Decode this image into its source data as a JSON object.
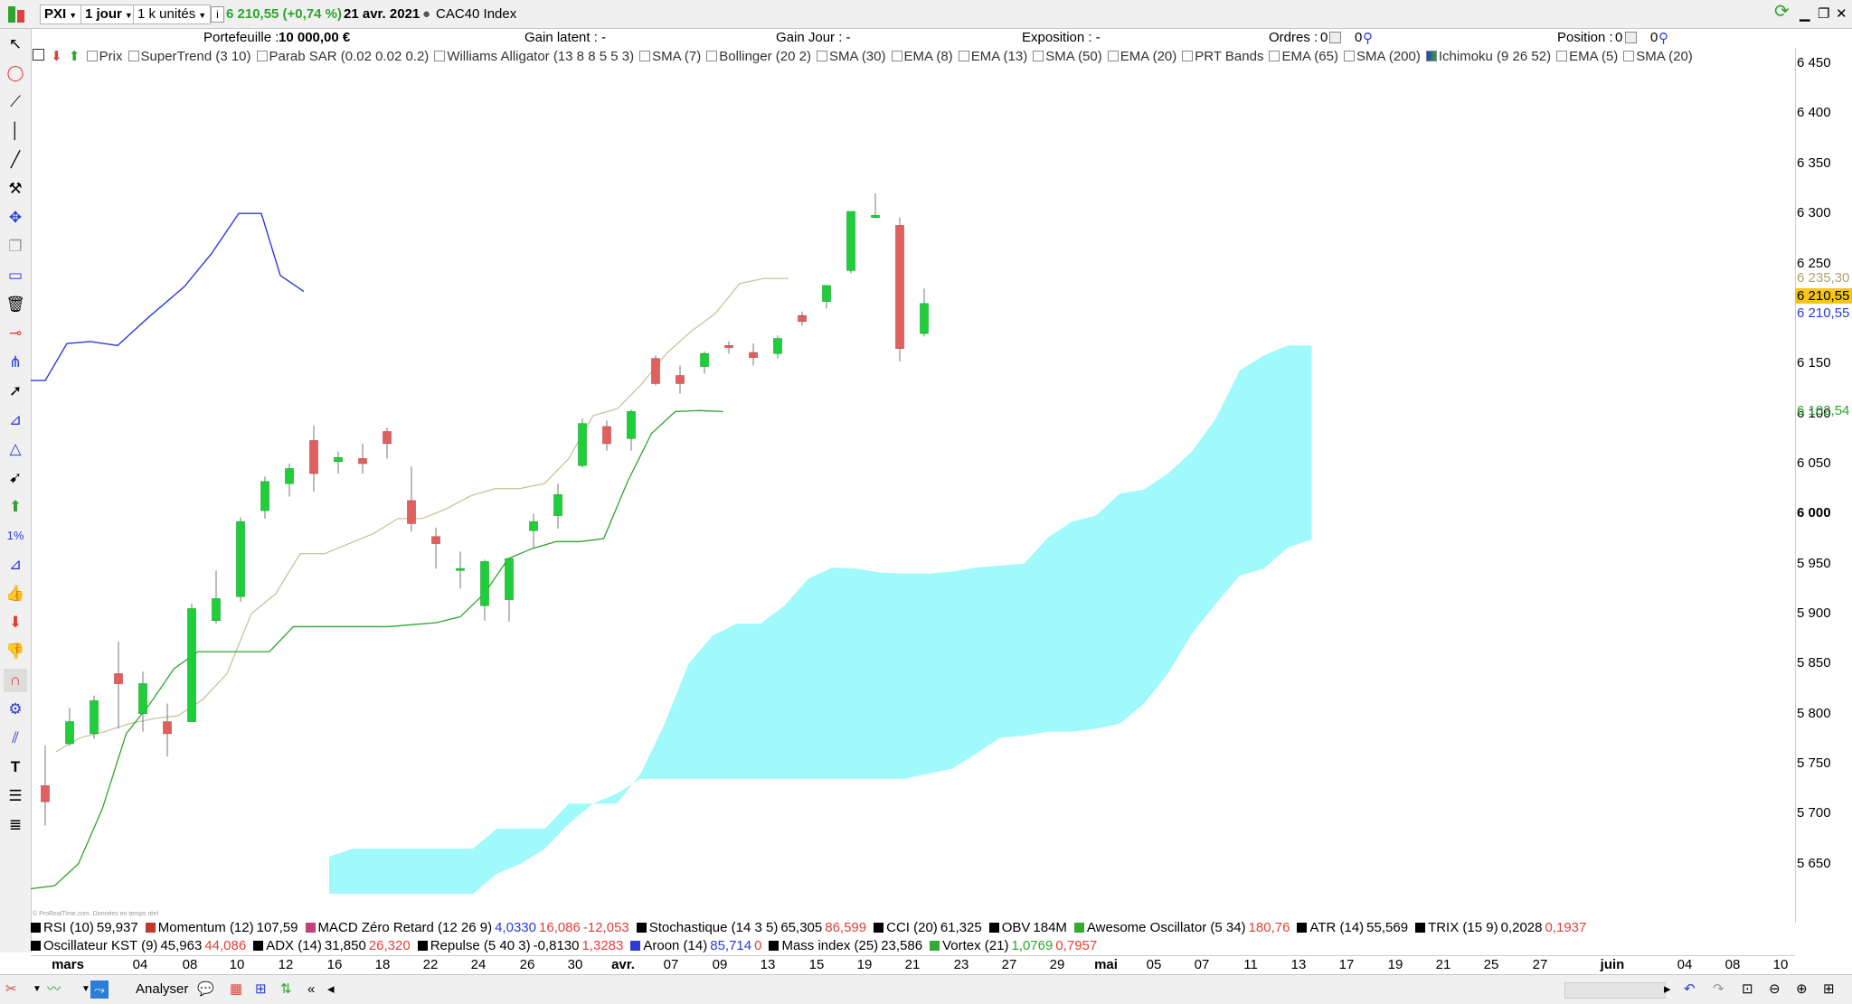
{
  "toolbar": {
    "ticker": "PXI",
    "period": "1 jour",
    "units": "1 k unités",
    "info": "i",
    "price_change": "6 210,55 (+0,74 %)",
    "date": "21 avr. 2021",
    "index_name": "CAC40 Index"
  },
  "infobar": {
    "portefeuille_label": "Portefeuille :",
    "portefeuille_value": "10 000,00 €",
    "gain_latent": "Gain latent : -",
    "gain_jour": "Gain Jour : -",
    "exposition": "Exposition : -",
    "ordres_label": "Ordres :",
    "ordres_value": "0",
    "ordres_value2": "0",
    "position_label": "Position :",
    "position_value": "0",
    "position_value2": "0"
  },
  "indicators_top": [
    "Prix",
    "SuperTrend (3 10)",
    "Parab SAR (0.02 0.02 0.2)",
    "Williams Alligator (13 8 8 5 5 3)",
    "SMA (7)",
    "Bollinger (20 2)",
    "SMA (30)",
    "EMA (8)",
    "EMA (13)",
    "SMA (50)",
    "EMA (20)",
    "PRT Bands",
    "EMA (65)",
    "SMA (200)",
    "Ichimoku (9 26 52)",
    "EMA (5)",
    "SMA (20)"
  ],
  "y_ticks": [
    "6 450",
    "6 400",
    "6 350",
    "6 300",
    "6 250",
    "6 150",
    "6 100",
    "6 050",
    "6 000",
    "5 950",
    "5 900",
    "5 850",
    "5 800",
    "5 750",
    "5 700",
    "5 650"
  ],
  "price_tags": {
    "kijun": "6 235,30",
    "last": "6 210,55",
    "tenkan": "6 210,55",
    "chikou": "6 102,54"
  },
  "bottom_indicators_row1": [
    {
      "name": "RSI (10)",
      "v1": "59,937",
      "v2": "",
      "color": "#000000"
    },
    {
      "name": "Momentum (12)",
      "v1": "107,59",
      "v2": "",
      "color": "#c0392b"
    },
    {
      "name": "MACD Zéro Retard (12 26 9)",
      "v1": "4,0330",
      "v2": "16,086",
      "v3": "-12,053",
      "color": "#c04080"
    },
    {
      "name": "Stochastique (14 3 5)",
      "v1": "65,305",
      "v2": "86,599",
      "color": "#000000"
    },
    {
      "name": "CCI (20)",
      "v1": "61,325",
      "v2": "",
      "color": "#000000"
    },
    {
      "name": "OBV",
      "v1": "184M",
      "v2": "",
      "color": "#000000"
    },
    {
      "name": "Awesome Oscillator (5 34)",
      "v1": "180,76",
      "v2": "",
      "color": "#3a3"
    },
    {
      "name": "ATR (14)",
      "v1": "55,569",
      "v2": "",
      "color": "#000000"
    },
    {
      "name": "TRIX (15 9)",
      "v1": "0,2028",
      "v2": "0,1937",
      "color": "#000000"
    }
  ],
  "bottom_indicators_row2": [
    {
      "name": "Oscillateur KST (9)",
      "v1": "45,963",
      "v2": "44,086",
      "color": "#000000"
    },
    {
      "name": "ADX (14)",
      "v1": "31,850",
      "v2": "26,320",
      "color": "#000000"
    },
    {
      "name": "Repulse (5 40 3)",
      "v1": "-0,8130",
      "v2": "1,3283",
      "color": "#000000"
    },
    {
      "name": "Aroon (14)",
      "v1": "85,714",
      "v2": "0",
      "color": "#2a3bd6"
    },
    {
      "name": "Mass index (25)",
      "v1": "23,586",
      "v2": "",
      "color": "#000000"
    },
    {
      "name": "Vortex (21)",
      "v1": "1,0769",
      "v2": "0,7957",
      "color": "#3a3"
    }
  ],
  "x_labels": [
    "mars",
    "04",
    "08",
    "10",
    "12",
    "16",
    "18",
    "22",
    "24",
    "26",
    "30",
    "avr.",
    "07",
    "09",
    "13",
    "15",
    "19",
    "21",
    "23",
    "27",
    "29",
    "mai",
    "05",
    "07",
    "11",
    "13",
    "17",
    "19",
    "21",
    "25",
    "27",
    "juin",
    "04",
    "08",
    "10"
  ],
  "statusbar": {
    "analyser": "Analyser"
  },
  "watermark": "© ProRealTime.com. Données en temps réel",
  "chart_data": {
    "type": "candlestick",
    "title": "PXI — CAC40 Index, 1 jour",
    "ylim": [
      5620,
      6470
    ],
    "y_ticks_values": [
      6450,
      6400,
      6350,
      6300,
      6250,
      6150,
      6100,
      6050,
      6000,
      5950,
      5900,
      5850,
      5800,
      5750,
      5700,
      5650
    ],
    "candles": [
      {
        "o": 5728,
        "h": 5768,
        "l": 5688,
        "c": 5712
      },
      {
        "o": 5770,
        "h": 5806,
        "l": 5768,
        "c": 5792
      },
      {
        "o": 5780,
        "h": 5818,
        "l": 5775,
        "c": 5813
      },
      {
        "o": 5840,
        "h": 5872,
        "l": 5785,
        "c": 5830
      },
      {
        "o": 5800,
        "h": 5842,
        "l": 5782,
        "c": 5830
      },
      {
        "o": 5792,
        "h": 5810,
        "l": 5757,
        "c": 5780
      },
      {
        "o": 5792,
        "h": 5910,
        "l": 5792,
        "c": 5905
      },
      {
        "o": 5893,
        "h": 5943,
        "l": 5890,
        "c": 5915
      },
      {
        "o": 5917,
        "h": 5996,
        "l": 5912,
        "c": 5992
      },
      {
        "o": 6003,
        "h": 6037,
        "l": 5995,
        "c": 6032
      },
      {
        "o": 6030,
        "h": 6050,
        "l": 6017,
        "c": 6045
      },
      {
        "o": 6073,
        "h": 6088,
        "l": 6022,
        "c": 6040
      },
      {
        "o": 6052,
        "h": 6062,
        "l": 6040,
        "c": 6056
      },
      {
        "o": 6055,
        "h": 6070,
        "l": 6040,
        "c": 6050
      },
      {
        "o": 6082,
        "h": 6086,
        "l": 6055,
        "c": 6070
      },
      {
        "o": 6013,
        "h": 6047,
        "l": 5982,
        "c": 5990
      },
      {
        "o": 5977,
        "h": 5986,
        "l": 5945,
        "c": 5970
      },
      {
        "o": 5944,
        "h": 5962,
        "l": 5925,
        "c": 5945
      },
      {
        "o": 5908,
        "h": 5954,
        "l": 5893,
        "c": 5952
      },
      {
        "o": 5914,
        "h": 5950,
        "l": 5892,
        "c": 5955
      },
      {
        "o": 5983,
        "h": 6000,
        "l": 5965,
        "c": 5992
      },
      {
        "o": 5998,
        "h": 6030,
        "l": 5985,
        "c": 6019
      },
      {
        "o": 6048,
        "h": 6095,
        "l": 6046,
        "c": 6090
      },
      {
        "o": 6087,
        "h": 6093,
        "l": 6063,
        "c": 6070
      },
      {
        "o": 6075,
        "h": 6104,
        "l": 6063,
        "c": 6102
      },
      {
        "o": 6155,
        "h": 6158,
        "l": 6128,
        "c": 6130
      },
      {
        "o": 6138,
        "h": 6148,
        "l": 6120,
        "c": 6130
      },
      {
        "o": 6147,
        "h": 6162,
        "l": 6140,
        "c": 6160
      },
      {
        "o": 6168,
        "h": 6172,
        "l": 6160,
        "c": 6166
      },
      {
        "o": 6161,
        "h": 6170,
        "l": 6148,
        "c": 6156
      },
      {
        "o": 6160,
        "h": 6178,
        "l": 6155,
        "c": 6175
      },
      {
        "o": 6198,
        "h": 6202,
        "l": 6188,
        "c": 6192
      },
      {
        "o": 6212,
        "h": 6225,
        "l": 6205,
        "c": 6228
      },
      {
        "o": 6243,
        "h": 6302,
        "l": 6240,
        "c": 6302
      },
      {
        "o": 6296,
        "h": 6320,
        "l": 6295,
        "c": 6298
      },
      {
        "o": 6288,
        "h": 6296,
        "l": 6152,
        "c": 6165
      },
      {
        "o": 6180,
        "h": 6225,
        "l": 6177,
        "c": 6210
      }
    ],
    "tenkan_chikou_blue": [
      6133,
      6133,
      6170,
      6172,
      6168,
      6196,
      6227,
      6260,
      6300,
      6300,
      6238,
      6222
    ],
    "kijun": [
      5762,
      5776,
      5782,
      5790,
      5795,
      5798,
      5814,
      5840,
      5900,
      5920,
      5960,
      5960,
      5970,
      5980,
      5995,
      5995,
      6005,
      6018,
      6025,
      6025,
      6030,
      6055,
      6098,
      6105,
      6130,
      6160,
      6182,
      6200,
      6230,
      6235,
      6235
    ],
    "chikou_green": [
      5625,
      5628,
      5650,
      5705,
      5780,
      5810,
      5845,
      5862,
      5862,
      5862,
      5862,
      5887,
      5887,
      5887,
      5887,
      5887,
      5889,
      5891,
      5897,
      5920,
      5955,
      5965,
      5972,
      5972,
      5975,
      6032,
      6080,
      6102,
      6103,
      6102
    ],
    "cloud_upper": [
      5657,
      5665,
      5665,
      5665,
      5665,
      5665,
      5665,
      5685,
      5685,
      5685,
      5710,
      5710,
      5710,
      5740,
      5790,
      5850,
      5878,
      5890,
      5890,
      5908,
      5935,
      5946,
      5945,
      5941,
      5940,
      5940,
      5942,
      5946,
      5948,
      5950,
      5976,
      5992,
      5998,
      6020,
      6024,
      6040,
      6062,
      6095,
      6143,
      6158,
      6168,
      6168
    ],
    "cloud_lower": [
      5620,
      5620,
      5620,
      5620,
      5620,
      5620,
      5620,
      5640,
      5650,
      5665,
      5690,
      5710,
      5720,
      5735,
      5735,
      5735,
      5735,
      5735,
      5735,
      5735,
      5735,
      5735,
      5735,
      5735,
      5735,
      5740,
      5745,
      5760,
      5776,
      5778,
      5782,
      5782,
      5785,
      5790,
      5810,
      5840,
      5880,
      5910,
      5938,
      5945,
      5966,
      5974
    ]
  }
}
